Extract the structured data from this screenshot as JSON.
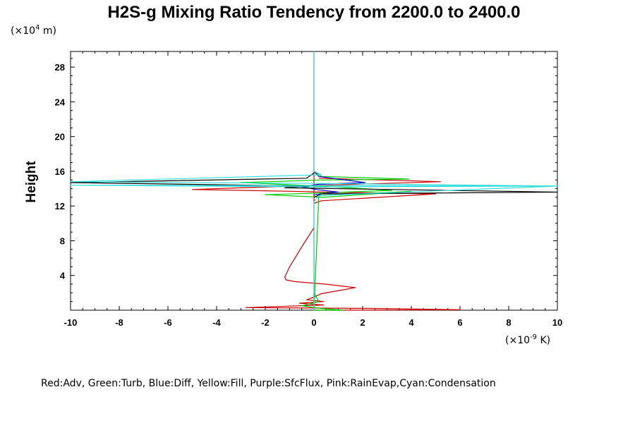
{
  "chart_data": {
    "type": "line",
    "title": "H2S-g Mixing Ratio Tendency from 2200.0 to 2400.0",
    "ylabel": "Height",
    "y_unit": {
      "prefix": "(×10",
      "exp": "4",
      "suffix": " m)"
    },
    "x_unit": {
      "prefix": "(×10",
      "exp": "-9",
      "suffix": " K)"
    },
    "xlim": [
      -10,
      10
    ],
    "ylim": [
      0,
      29.8
    ],
    "x_ticks": [
      -10,
      -8,
      -6,
      -4,
      -2,
      0,
      2,
      4,
      6,
      8,
      10
    ],
    "y_ticks": [
      4,
      8,
      12,
      16,
      20,
      24,
      28
    ],
    "grid": false,
    "legend_text": "Red:Adv,  Green:Turb,  Blue:Diff,  Yellow:Fill,  Purple:SfcFlux,  Pink:RainEvap,Cyan:Condensation",
    "colors": {
      "red": "#cc0000",
      "green": "#00cc00",
      "blue": "#0000cc",
      "black": "#000000",
      "cyan": "#33dddd"
    },
    "series": [
      {
        "name": "Adv",
        "color": "#cc0000",
        "x": [
          0,
          0,
          0,
          -0.5,
          -1,
          -1.2,
          -1.15,
          -0.8,
          0.5,
          1.7,
          0.3,
          0,
          -0.3,
          0.4,
          -0.6,
          0.4,
          -2.8,
          2.5,
          6,
          0.5,
          0,
          0,
          0.3,
          5,
          0.5,
          -1,
          -5,
          -3,
          0.5,
          5.2,
          0.2
        ],
        "y": [
          29.8,
          15.0,
          9.5,
          7.3,
          5.0,
          3.8,
          3.5,
          3.3,
          3.0,
          2.6,
          1.9,
          1.5,
          1.2,
          1.0,
          0.8,
          0.6,
          0.3,
          0.2,
          0.05,
          0.0,
          0.0,
          12.3,
          12.6,
          13.4,
          13.6,
          13.7,
          13.9,
          14.1,
          14.4,
          14.8,
          15.2
        ]
      },
      {
        "name": "Turb",
        "color": "#00cc00",
        "x": [
          0,
          0.3,
          3.9,
          0.3,
          -3,
          0.2,
          3.2,
          0.3,
          -2,
          0.4,
          4,
          0.2,
          0,
          0,
          0.2,
          -0.5,
          0.3,
          1.2,
          0
        ],
        "y": [
          16.0,
          15.4,
          15.1,
          15.0,
          14.7,
          14.3,
          13.8,
          13.5,
          13.3,
          13.0,
          13.7,
          13.2,
          0,
          2.0,
          1.0,
          0.5,
          0.2,
          0.0,
          0.0
        ]
      },
      {
        "name": "Diff",
        "color": "#0000cc",
        "x": [
          0,
          0.2,
          2.1,
          0.2,
          -0.5,
          0.1,
          1.0,
          0
        ],
        "y": [
          16.0,
          15.4,
          14.7,
          14.5,
          14.2,
          13.9,
          13.6,
          13.3
        ]
      },
      {
        "name": "SfcFlux",
        "color": "#000000",
        "x": [
          0,
          -0.3,
          -10,
          -0.2,
          -1.2,
          10,
          0.3,
          0
        ],
        "y": [
          15.8,
          15.2,
          14.7,
          14.3,
          14.1,
          13.6,
          13.4,
          13.0
        ]
      },
      {
        "name": "Condensation",
        "color": "#33dddd",
        "x": [
          0,
          0,
          0.3,
          -10,
          0.2,
          10,
          0.1,
          -10,
          10,
          0.2,
          0,
          0
        ],
        "y": [
          29.8,
          16.0,
          15.6,
          14.8,
          14.6,
          14.3,
          14.2,
          14.4,
          14.3,
          13.2,
          12.5,
          0
        ]
      }
    ]
  }
}
